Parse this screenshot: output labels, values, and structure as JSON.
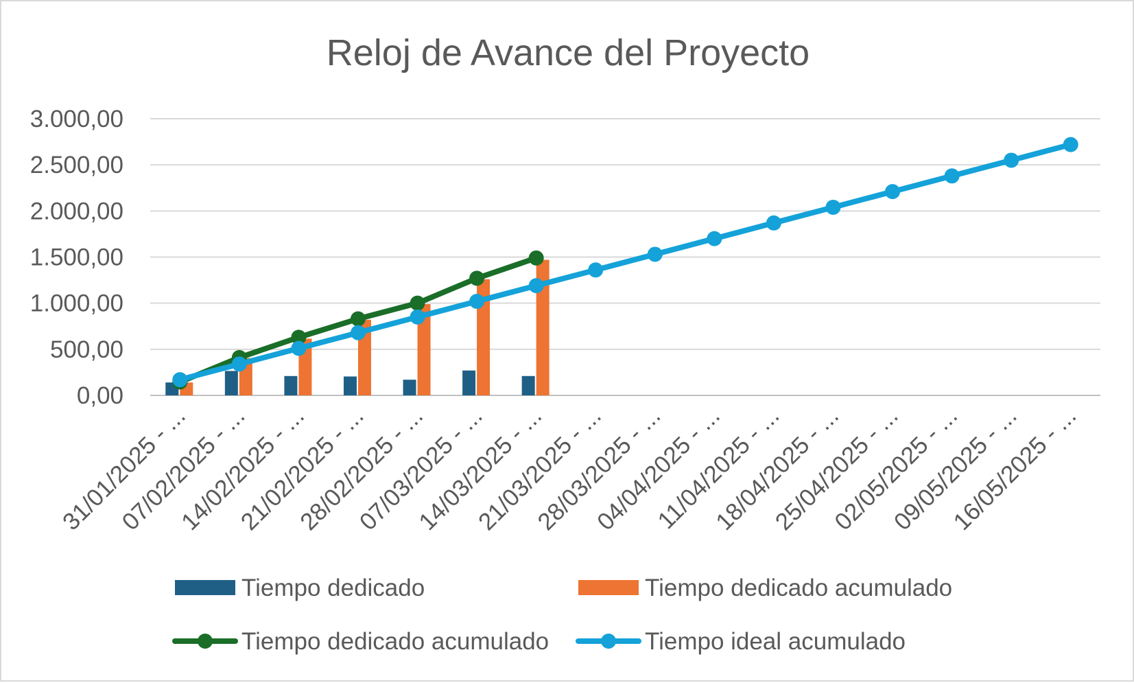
{
  "chart_data": {
    "type": "bar+line",
    "title": "Reloj de Avance del Proyecto",
    "xlabel": "",
    "ylabel": "",
    "ylim": [
      0,
      3000
    ],
    "y_ticks": [
      "0,00",
      "500,00",
      "1.000,00",
      "1.500,00",
      "2.000,00",
      "2.500,00",
      "3.000,00"
    ],
    "categories": [
      "31/01/2025 - ...",
      "07/02/2025 - ...",
      "14/02/2025 - ...",
      "21/02/2025 - ...",
      "28/02/2025 - ...",
      "07/03/2025 - ...",
      "14/03/2025 - ...",
      "21/03/2025 - ...",
      "28/03/2025 - ...",
      "04/04/2025 - ...",
      "11/04/2025 - ...",
      "18/04/2025 - ...",
      "25/04/2025 - ...",
      "02/05/2025 - ...",
      "09/05/2025 - ...",
      "16/05/2025 - ..."
    ],
    "grid": true,
    "legend_position": "bottom",
    "series": [
      {
        "name": "Tiempo dedicado",
        "kind": "bar",
        "color": "#1f5f86",
        "values": [
          140,
          265,
          210,
          205,
          170,
          270,
          210,
          null,
          null,
          null,
          null,
          null,
          null,
          null,
          null,
          null
        ]
      },
      {
        "name": "Tiempo dedicado acumulado",
        "kind": "bar",
        "color": "#ed7432",
        "values": [
          140,
          405,
          615,
          820,
          990,
          1260,
          1470,
          null,
          null,
          null,
          null,
          null,
          null,
          null,
          null,
          null
        ]
      },
      {
        "name": "Tiempo dedicado acumulado",
        "kind": "line",
        "color": "#1a6e28",
        "values": [
          145,
          410,
          630,
          830,
          1000,
          1270,
          1490,
          null,
          null,
          null,
          null,
          null,
          null,
          null,
          null,
          null
        ]
      },
      {
        "name": "Tiempo ideal acumulado",
        "kind": "line",
        "color": "#14a2d9",
        "values": [
          170,
          340,
          510,
          680,
          850,
          1020,
          1190,
          1360,
          1530,
          1700,
          1870,
          2040,
          2210,
          2380,
          2550,
          2720
        ]
      }
    ]
  }
}
